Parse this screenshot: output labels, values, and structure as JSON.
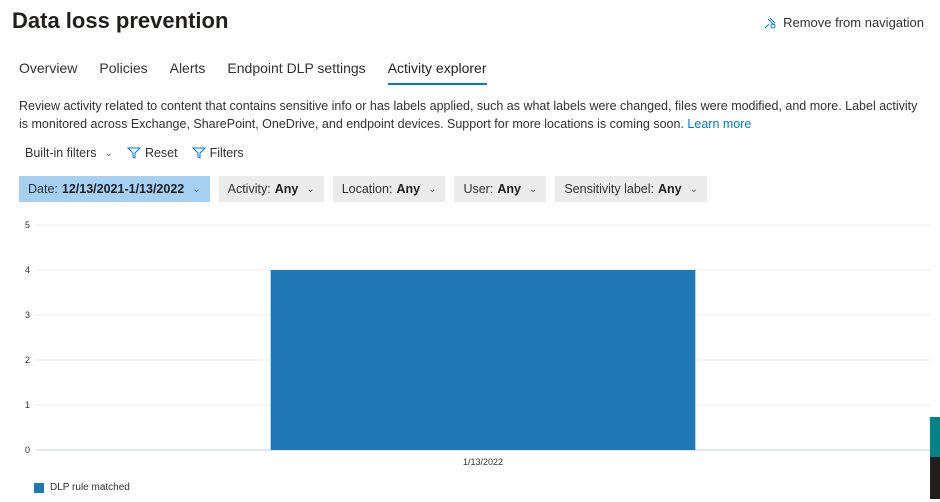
{
  "header": {
    "title": "Data loss prevention",
    "remove_nav": "Remove from navigation"
  },
  "tabs": [
    {
      "label": "Overview"
    },
    {
      "label": "Policies"
    },
    {
      "label": "Alerts"
    },
    {
      "label": "Endpoint DLP settings"
    },
    {
      "label": "Activity explorer",
      "active": true
    }
  ],
  "description": {
    "text": "Review activity related to content that contains sensitive info or has labels applied, such as what labels were changed, files were modified, and more. Label activity is monitored across Exchange, SharePoint, OneDrive, and endpoint devices. Support for more locations is coming soon.",
    "link": "Learn more"
  },
  "commands": {
    "builtin": "Built-in filters",
    "reset": "Reset",
    "filters": "Filters"
  },
  "filters": [
    {
      "label": "Date:",
      "value": "12/13/2021-1/13/2022"
    },
    {
      "label": "Activity:",
      "value": "Any"
    },
    {
      "label": "Location:",
      "value": "Any"
    },
    {
      "label": "User:",
      "value": "Any"
    },
    {
      "label": "Sensitivity label:",
      "value": "Any"
    }
  ],
  "chart_data": {
    "type": "bar",
    "categories": [
      "1/13/2022"
    ],
    "series": [
      {
        "name": "DLP rule matched",
        "values": [
          4
        ],
        "color": "#1f77b4"
      }
    ],
    "ylim": [
      0,
      5
    ],
    "yticks": [
      "0",
      "1",
      "2",
      "3",
      "4",
      "5"
    ],
    "grid": true,
    "legend": "bottom-left"
  }
}
